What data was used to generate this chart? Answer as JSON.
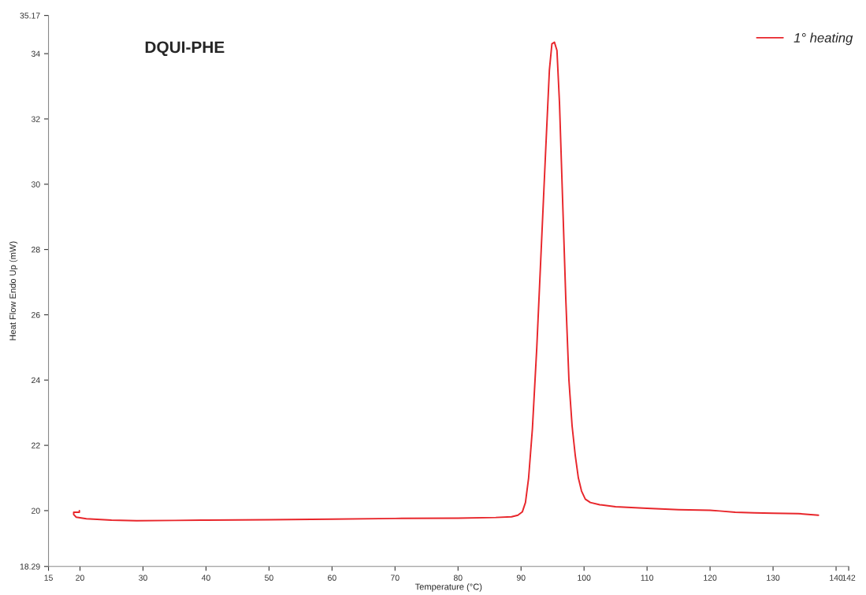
{
  "chart_data": {
    "type": "line",
    "title": "DQUI-PHE",
    "xlabel": "Temperature (°C)",
    "ylabel": "Heat Flow Endo Up (mW)",
    "xlim": [
      15,
      142
    ],
    "xticks": [
      15,
      20,
      30,
      40,
      50,
      60,
      70,
      80,
      90,
      100,
      110,
      120,
      130,
      140,
      142
    ],
    "ylim": [
      18.29,
      35.17
    ],
    "yticks": [
      18.29,
      20,
      22,
      24,
      26,
      28,
      30,
      32,
      34,
      35.17
    ],
    "grid": false,
    "legend": "top right",
    "series": [
      {
        "name": "1° heating",
        "color": "#e8262b",
        "x": [
          19.9,
          19.9,
          19.0,
          19.0,
          19.4,
          21,
          25,
          29,
          35,
          40,
          50,
          60,
          70,
          80,
          86,
          88.5,
          89.5,
          90.2,
          90.7,
          91.2,
          91.8,
          92.5,
          93.2,
          93.9,
          94.5,
          94.9,
          95.3,
          95.7,
          96.1,
          96.6,
          97.1,
          97.6,
          98.1,
          98.6,
          99.1,
          99.6,
          100.2,
          101,
          102.5,
          105,
          110,
          115,
          120,
          121.5,
          124,
          127,
          130,
          134,
          137.2
        ],
        "values": [
          20.0,
          19.95,
          19.95,
          19.88,
          19.8,
          19.75,
          19.71,
          19.69,
          19.7,
          19.71,
          19.72,
          19.74,
          19.76,
          19.77,
          19.79,
          19.81,
          19.86,
          19.96,
          20.25,
          21.0,
          22.5,
          25.0,
          28.0,
          31.0,
          33.5,
          34.3,
          34.35,
          34.1,
          32.5,
          29.5,
          26.5,
          24.0,
          22.6,
          21.7,
          21.0,
          20.6,
          20.35,
          20.25,
          20.18,
          20.12,
          20.07,
          20.03,
          20.01,
          19.99,
          19.95,
          19.93,
          19.92,
          19.91,
          19.86
        ]
      }
    ]
  }
}
